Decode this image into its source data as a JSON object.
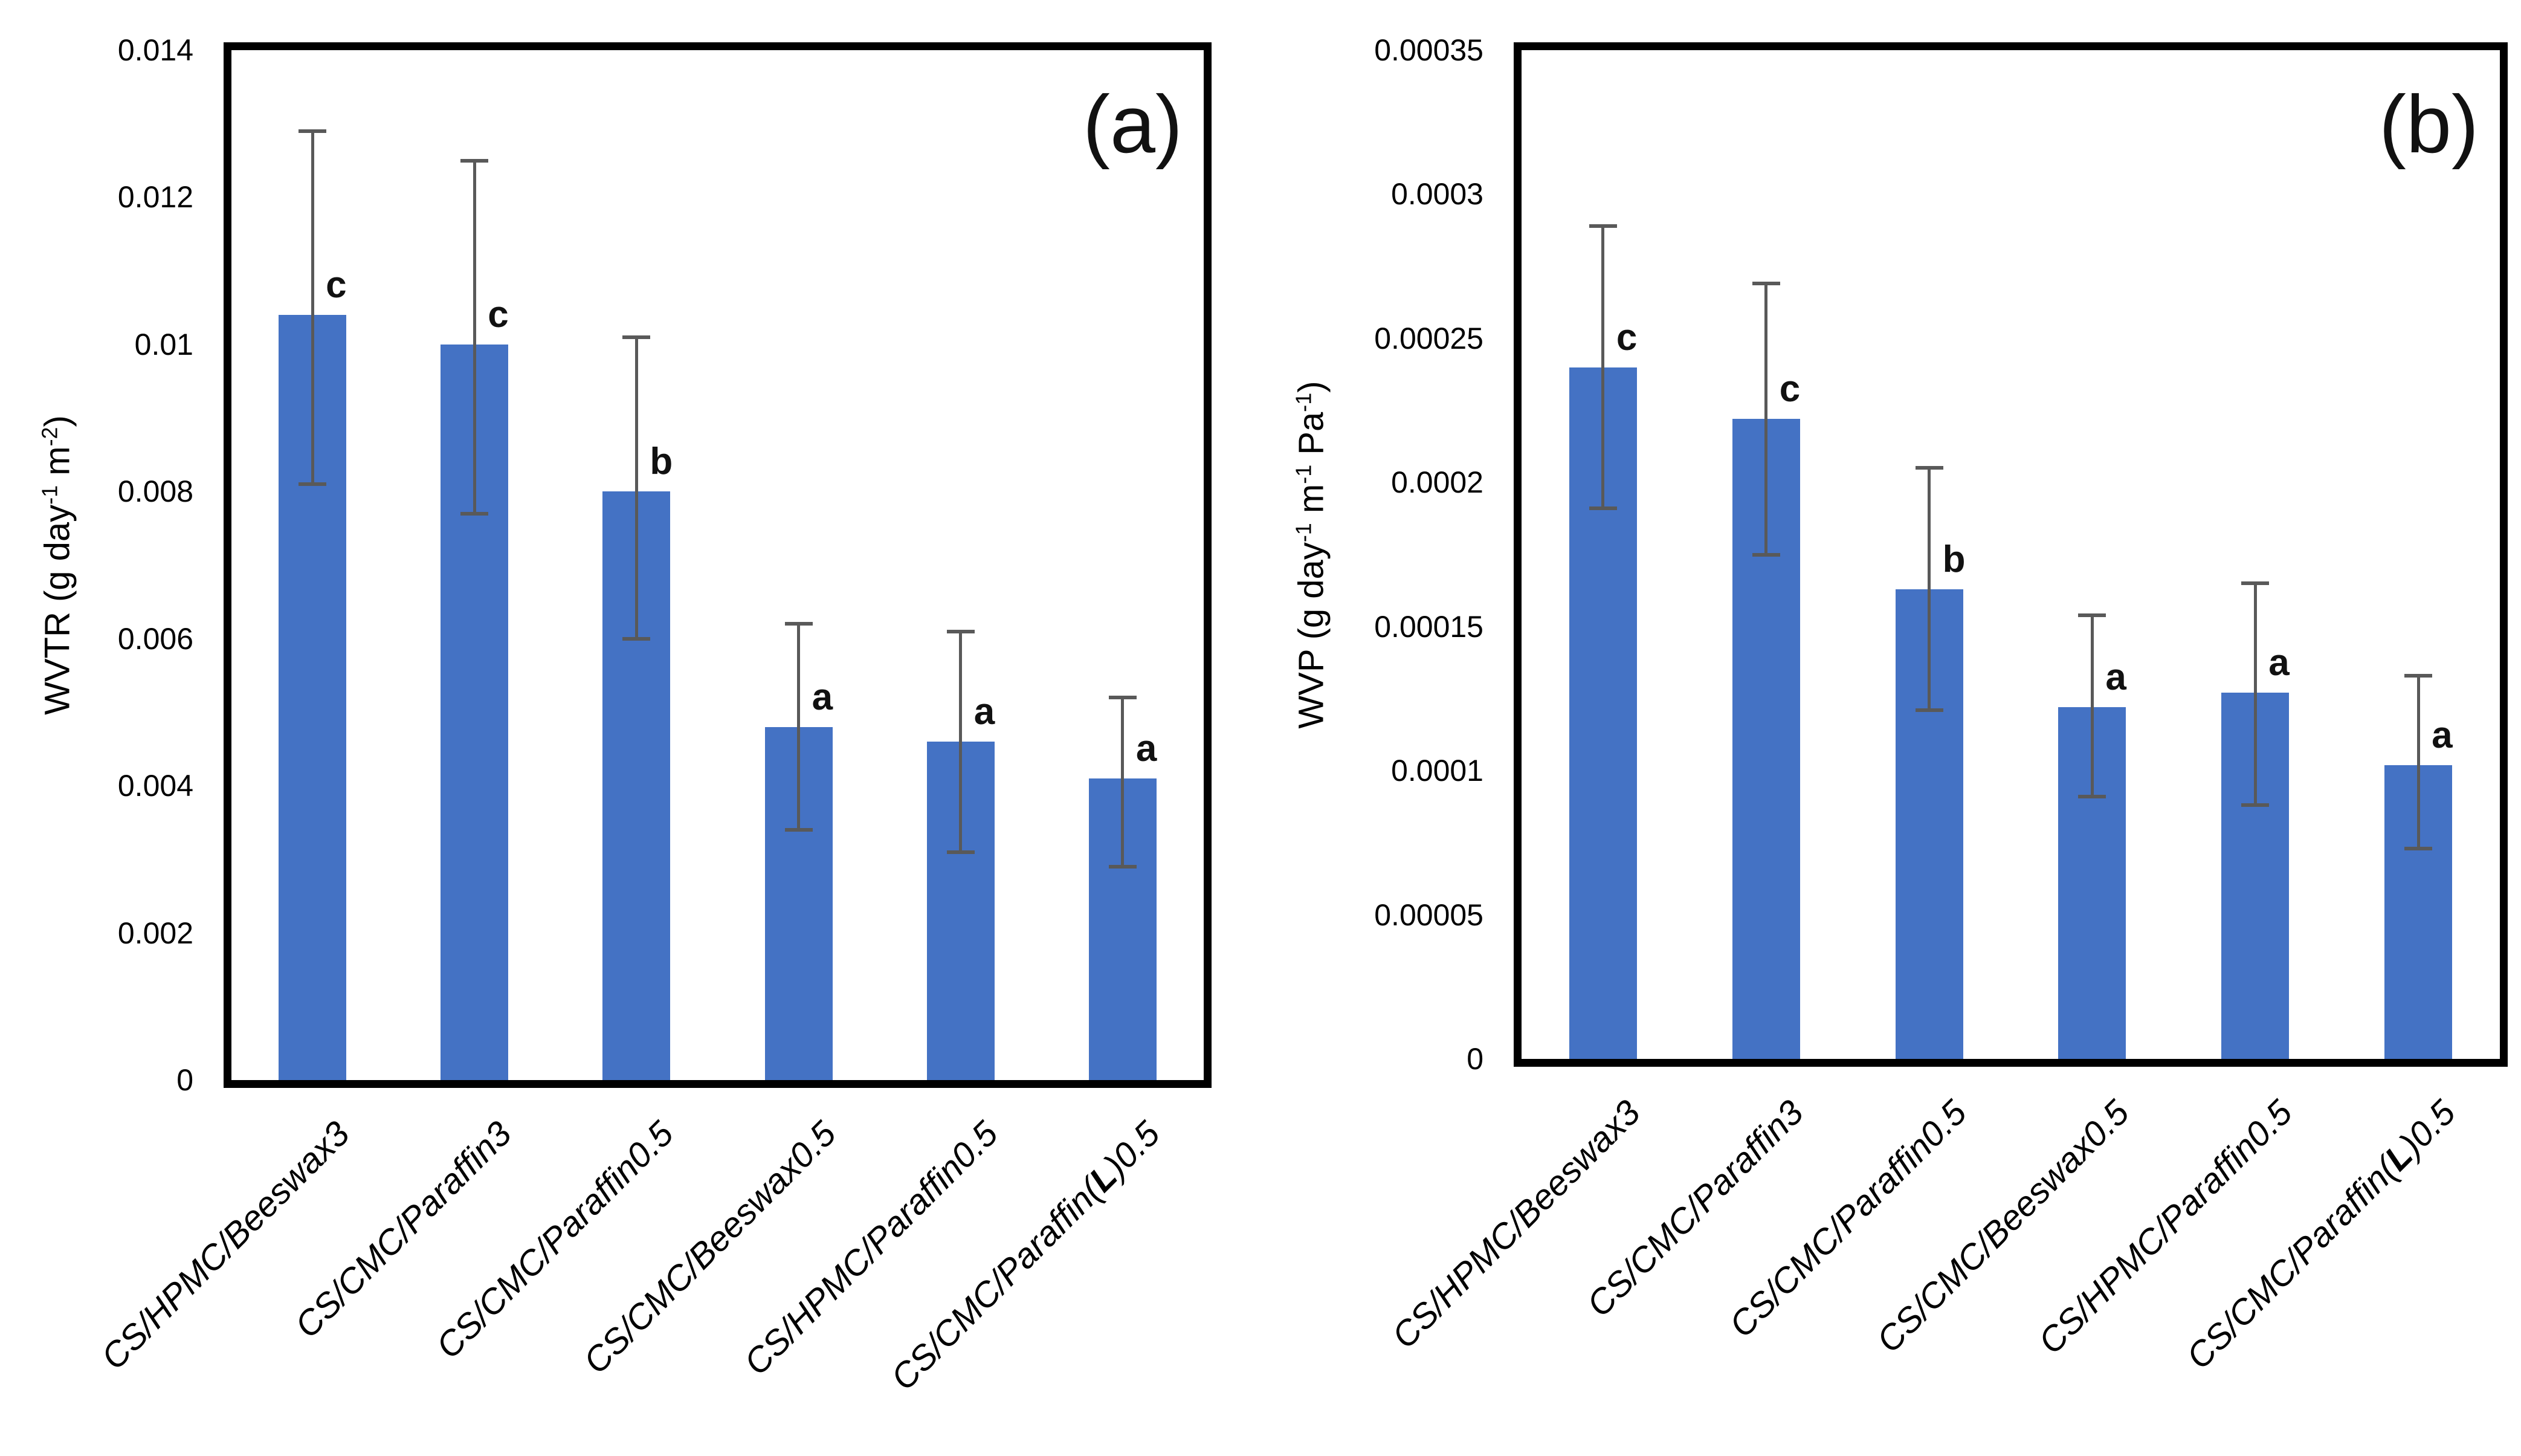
{
  "colors": {
    "bar_fill": "#4472C4",
    "error_bar": "#595959",
    "axis_border": "#000000",
    "text": "#000000"
  },
  "chart_data": [
    {
      "type": "bar",
      "tag": "(a)",
      "ylabel": "WVTR (g day⁻¹ m⁻²)",
      "ylabel_parts": [
        {
          "t": "WVTR (g day"
        },
        {
          "t": "-1",
          "sup": true
        },
        {
          "t": " m"
        },
        {
          "t": "-2",
          "sup": true
        },
        {
          "t": ")"
        }
      ],
      "xlabel": "",
      "ylim": [
        0,
        0.014
      ],
      "grid": false,
      "legend": null,
      "ytick_values": [
        0,
        0.002,
        0.004,
        0.006,
        0.008,
        0.01,
        0.012,
        0.014
      ],
      "ytick_labels": [
        "0",
        "0.002",
        "0.004",
        "0.006",
        "0.008",
        "0.01",
        "0.012",
        "0.014"
      ],
      "categories": [
        "CS/HPMC/Beeswax3",
        "CS/CMC/Paraffin3",
        "CS/CMC/Paraffin0.5",
        "CS/CMC/Beeswax0.5",
        "CS/HPMC/Paraffin0.5",
        "CS/CMC/Paraffin(L)0.5"
      ],
      "categories_rich": [
        [
          {
            "t": "CS/HPMC/Beeswax3"
          }
        ],
        [
          {
            "t": "CS/CMC/Paraffin3"
          }
        ],
        [
          {
            "t": "CS/CMC/Paraffin0.5"
          }
        ],
        [
          {
            "t": "CS/CMC/Beeswax0.5"
          }
        ],
        [
          {
            "t": "CS/HPMC/Paraffin0.5"
          }
        ],
        [
          {
            "t": "CS/CMC/Paraffin("
          },
          {
            "t": "L",
            "b": true
          },
          {
            "t": ")0.5"
          }
        ]
      ],
      "values": [
        0.0104,
        0.01,
        0.008,
        0.0048,
        0.0046,
        0.0041
      ],
      "err_low": [
        0.0081,
        0.0077,
        0.006,
        0.0034,
        0.0031,
        0.0029
      ],
      "err_high": [
        0.0129,
        0.0125,
        0.0101,
        0.0062,
        0.0061,
        0.0052
      ],
      "sig_letters": [
        "c",
        "c",
        "b",
        "a",
        "a",
        "a"
      ]
    },
    {
      "type": "bar",
      "tag": "(b)",
      "ylabel": "WVP (g day⁻¹ m⁻¹ Pa⁻¹)",
      "ylabel_parts": [
        {
          "t": "WVP (g day"
        },
        {
          "t": "-1",
          "sup": true
        },
        {
          "t": " m"
        },
        {
          "t": "-1",
          "sup": true
        },
        {
          "t": " Pa"
        },
        {
          "t": "-1",
          "sup": true
        },
        {
          "t": ")"
        }
      ],
      "xlabel": "",
      "ylim": [
        0,
        0.00035
      ],
      "grid": false,
      "legend": null,
      "ytick_values": [
        0,
        5e-05,
        0.0001,
        0.00015,
        0.0002,
        0.00025,
        0.0003,
        0.00035
      ],
      "ytick_labels": [
        "0",
        "0.00005",
        "0.0001",
        "0.00015",
        "0.0002",
        "0.00025",
        "0.0003",
        "0.00035"
      ],
      "categories": [
        "CS/HPMC/Beeswax3",
        "CS/CMC/Paraffin3",
        "CS/CMC/Paraffin0.5",
        "CS/CMC/Beeswax0.5",
        "CS/HPMC/Paraffin0.5",
        "CS/CMC/Paraffin(L)0.5"
      ],
      "categories_rich": [
        [
          {
            "t": "CS/HPMC/Beeswax3"
          }
        ],
        [
          {
            "t": "CS/CMC/Paraffin3"
          }
        ],
        [
          {
            "t": "CS/CMC/Paraffin0.5"
          }
        ],
        [
          {
            "t": "CS/CMC/Beeswax0.5"
          }
        ],
        [
          {
            "t": "CS/HPMC/Paraffin0.5"
          }
        ],
        [
          {
            "t": "CS/CMC/Paraffin("
          },
          {
            "t": "L",
            "b": true
          },
          {
            "t": ")0.5"
          }
        ]
      ],
      "values": [
        0.00024,
        0.000222,
        0.000163,
        0.000122,
        0.000127,
        0.000102
      ],
      "err_low": [
        0.000191,
        0.000175,
        0.000121,
        9.1e-05,
        8.8e-05,
        7.3e-05
      ],
      "err_high": [
        0.000289,
        0.000269,
        0.000205,
        0.000154,
        0.000165,
        0.000133
      ],
      "sig_letters": [
        "c",
        "c",
        "b",
        "a",
        "a",
        "a"
      ]
    }
  ]
}
